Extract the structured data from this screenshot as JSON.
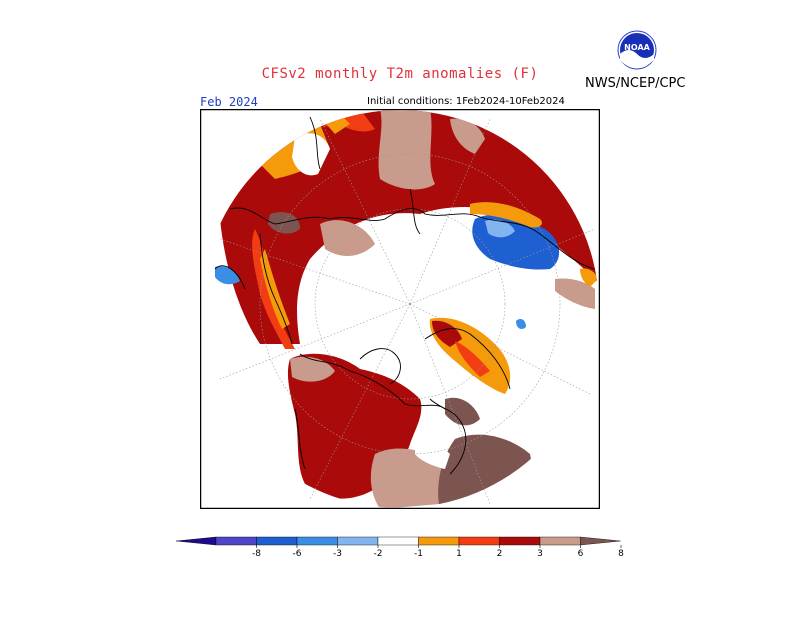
{
  "header": {
    "title": "CFSv2 monthly T2m anomalies (F)",
    "agency": "NWS/NCEP/CPC",
    "logo_text": "NOAA",
    "month": "Feb 2024",
    "initial_conditions": "Initial conditions: 1Feb2024-10Feb2024"
  },
  "legend": {
    "ticks": [
      "-8",
      "-6",
      "-3",
      "-2",
      "-1",
      "1",
      "2",
      "3",
      "6",
      "8"
    ],
    "colors": [
      "#1e0a8c",
      "#5044c8",
      "#1e5fd2",
      "#3a8ee6",
      "#82b4f0",
      "#ffffff",
      "#f59a0a",
      "#f23c14",
      "#aa0a0a",
      "#c89b8c",
      "#7d5550"
    ]
  },
  "palette": {
    "frame": "#000000",
    "outline": "#000000",
    "grid": "#9a9a9a",
    "title_color": "#e0303a",
    "month_color": "#2040c0"
  }
}
